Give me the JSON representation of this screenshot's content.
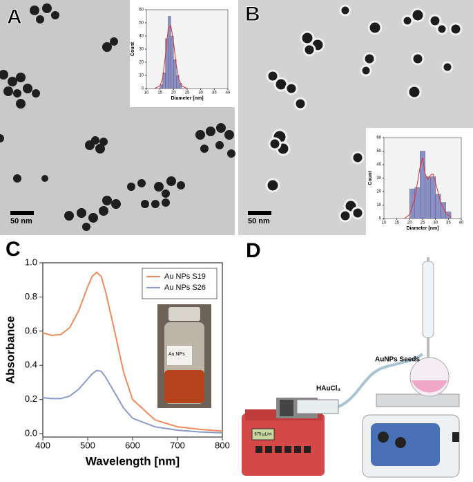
{
  "panels": {
    "labels": [
      "A",
      "B",
      "C",
      "D"
    ],
    "scale_bar": "50 nm"
  },
  "photo": {
    "label": "Au NPs"
  },
  "diagram": {
    "reagent": "HAuCl₄",
    "seeds": "AuNPs Seeds",
    "pump_display": "675 µL/m"
  },
  "chart_data": [
    {
      "type": "histogram",
      "xlabel": "Diameter [nm]",
      "ylabel": "Count",
      "bins": [
        15,
        16,
        17,
        18,
        19,
        20,
        21,
        22,
        23
      ],
      "counts": [
        3,
        12,
        38,
        55,
        40,
        22,
        10,
        4
      ],
      "color": "#8a8fc8",
      "fit": {
        "x": [
          13,
          15,
          16,
          17,
          18,
          19,
          20,
          21,
          22,
          23,
          25
        ],
        "values": [
          0,
          2,
          8,
          25,
          45,
          48,
          35,
          18,
          7,
          2,
          0
        ],
        "color": "#e03030"
      },
      "xlim": [
        10,
        40
      ],
      "xticks": [
        10,
        15,
        20,
        25,
        30,
        35,
        40
      ],
      "ylim": [
        0,
        60
      ],
      "yticks": [
        0,
        10,
        20,
        30,
        40,
        50,
        60
      ]
    },
    {
      "type": "histogram",
      "xlabel": "Diameter [nm]",
      "ylabel": "Count",
      "bins": [
        20,
        22,
        24,
        26,
        28,
        30,
        32,
        34,
        36
      ],
      "counts": [
        22,
        23,
        50,
        31,
        31,
        18,
        12,
        5
      ],
      "color": "#8a8fc8",
      "fit": {
        "x": [
          18,
          20,
          22,
          24,
          25,
          26,
          27,
          28,
          29,
          30,
          32,
          34,
          36
        ],
        "values": [
          0,
          3,
          15,
          38,
          45,
          33,
          29,
          32,
          33,
          27,
          12,
          4,
          1
        ],
        "color": "#e03030"
      },
      "xlim": [
        10,
        40
      ],
      "xticks": [
        10,
        15,
        20,
        25,
        30,
        35,
        40
      ],
      "ylim": [
        0,
        60
      ],
      "yticks": [
        0,
        10,
        20,
        30,
        40,
        50,
        60
      ]
    },
    {
      "type": "line",
      "xlabel": "Wavelength [nm]",
      "ylabel": "Absorbance",
      "legend": "upper right",
      "x": [
        400,
        420,
        440,
        460,
        480,
        500,
        510,
        520,
        530,
        540,
        560,
        580,
        600,
        650,
        700,
        750,
        800
      ],
      "series": [
        {
          "name": "Au NPs S19",
          "color": "#f08a5a",
          "values": [
            0.59,
            0.575,
            0.58,
            0.62,
            0.72,
            0.86,
            0.92,
            0.945,
            0.92,
            0.83,
            0.6,
            0.36,
            0.2,
            0.08,
            0.04,
            0.025,
            0.015
          ]
        },
        {
          "name": "Au NPs S26",
          "color": "#8a9ac8",
          "values": [
            0.21,
            0.205,
            0.205,
            0.22,
            0.26,
            0.32,
            0.35,
            0.37,
            0.365,
            0.33,
            0.24,
            0.15,
            0.09,
            0.04,
            0.02,
            0.01,
            0.005
          ]
        }
      ],
      "xlim": [
        400,
        800
      ],
      "xticks": [
        400,
        500,
        600,
        700,
        800
      ],
      "ylim": [
        -0.02,
        1.0
      ],
      "yticks": [
        {
          "value": 0,
          "label": "0.0"
        },
        0.2,
        0.4,
        0.6,
        0.8,
        {
          "value": 1,
          "label": "1.0"
        }
      ]
    }
  ]
}
